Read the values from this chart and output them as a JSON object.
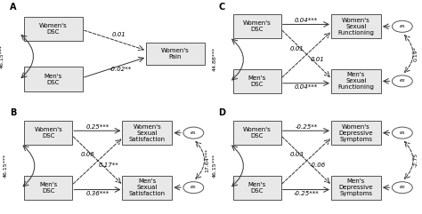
{
  "panels": [
    {
      "label": "A",
      "top_left_text": "Women's\nDSC",
      "bot_left_text": "Men's\nDSC",
      "right_text": "Women's\nPain",
      "covariance": "46.15***",
      "top_arrow_label": "0.01",
      "top_arrow_dashed": true,
      "bot_arrow_label": "-0.02**",
      "bot_arrow_dashed": false,
      "type": "A"
    },
    {
      "label": "B",
      "top_left_text": "Women's\nDSC",
      "bot_left_text": "Men's\nDSC",
      "top_right_text": "Women's\nSexual\nSatisfaction",
      "bot_right_text": "Men's\nSexual\nSatisfaction",
      "covariance": "46.15***",
      "top_solid": "0.25***",
      "bot_solid": "0.36***",
      "cross_top_label": "0.06",
      "cross_bot_label": "0.17**",
      "right_label": "17.64***",
      "type": "full"
    },
    {
      "label": "C",
      "top_left_text": "Women's\nDSC",
      "bot_left_text": "Men's\nDSC",
      "top_right_text": "Women's\nSexual\nFunctioning",
      "bot_right_text": "Men's\nSexual\nFunctioning",
      "covariance": "44.88***",
      "top_solid": "0.04***",
      "bot_solid": "0.04***",
      "cross_top_label": "0.01",
      "cross_bot_label": "0.01",
      "right_label": "0.19*",
      "type": "full"
    },
    {
      "label": "D",
      "top_left_text": "Women's\nDSC",
      "bot_left_text": "Men's\nDSC",
      "top_right_text": "Women's\nDepressive\nSymptoms",
      "bot_right_text": "Men's\nDepressive\nSymptoms",
      "covariance": "46.15***",
      "top_solid": "-0.25**",
      "bot_solid": "-0.25***",
      "cross_top_label": "0.03",
      "cross_bot_label": "-0.06",
      "right_label": "-2.75",
      "type": "full"
    }
  ]
}
